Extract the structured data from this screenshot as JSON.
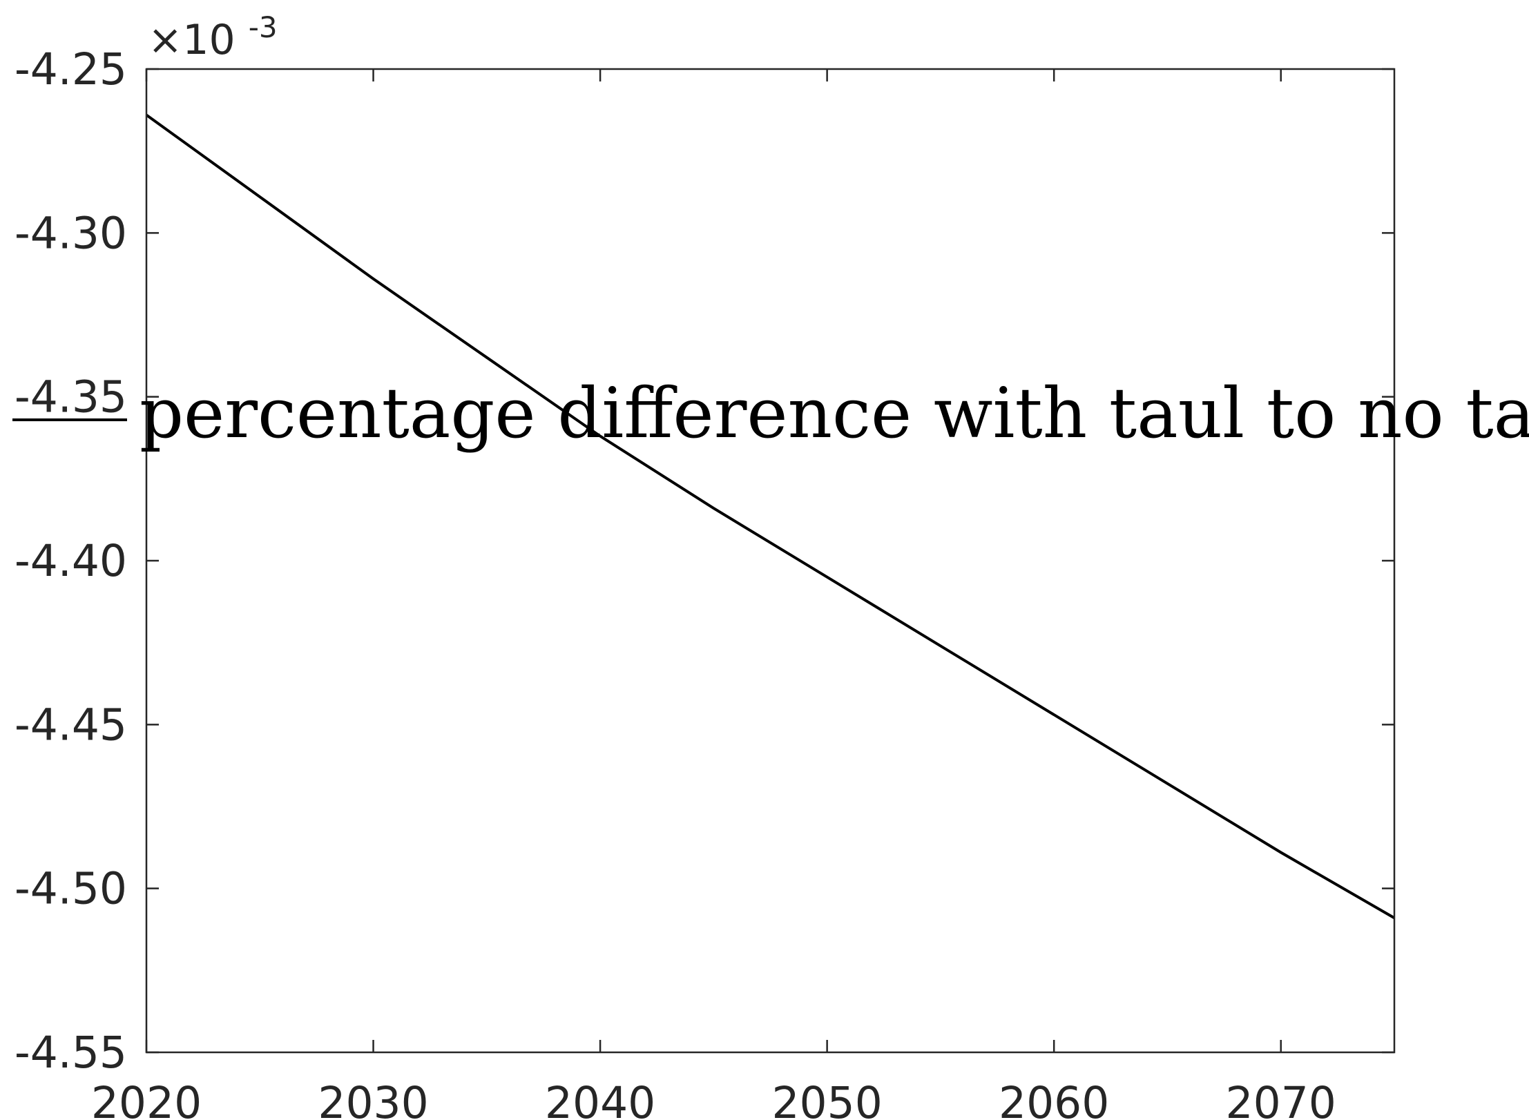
{
  "chart_data": {
    "type": "line",
    "title": "",
    "xlabel": "",
    "ylabel": "",
    "xlim": [
      2020,
      2075
    ],
    "ylim": [
      -4.55,
      -4.25
    ],
    "x_ticks": [
      2020,
      2030,
      2040,
      2050,
      2060,
      2070
    ],
    "y_ticks": [
      -4.25,
      -4.3,
      -4.35,
      -4.4,
      -4.45,
      -4.5,
      -4.55
    ],
    "y_tick_labels": [
      "-4.25",
      "-4.30",
      "-4.35",
      "-4.40",
      "-4.45",
      "-4.50",
      "-4.55"
    ],
    "y_multiplier": {
      "base": "×10",
      "exponent": "-3"
    },
    "grid": false,
    "legend": {
      "placement": "center-left"
    },
    "series": [
      {
        "name": "percentage difference with taul to no taul",
        "color": "#000000",
        "x": [
          2020,
          2025,
          2030,
          2035,
          2040,
          2045,
          2050,
          2055,
          2060,
          2065,
          2070,
          2075
        ],
        "y": [
          -4.264,
          -4.289,
          -4.314,
          -4.338,
          -4.362,
          -4.384,
          -4.405,
          -4.426,
          -4.447,
          -4.468,
          -4.489,
          -4.509
        ]
      }
    ]
  }
}
